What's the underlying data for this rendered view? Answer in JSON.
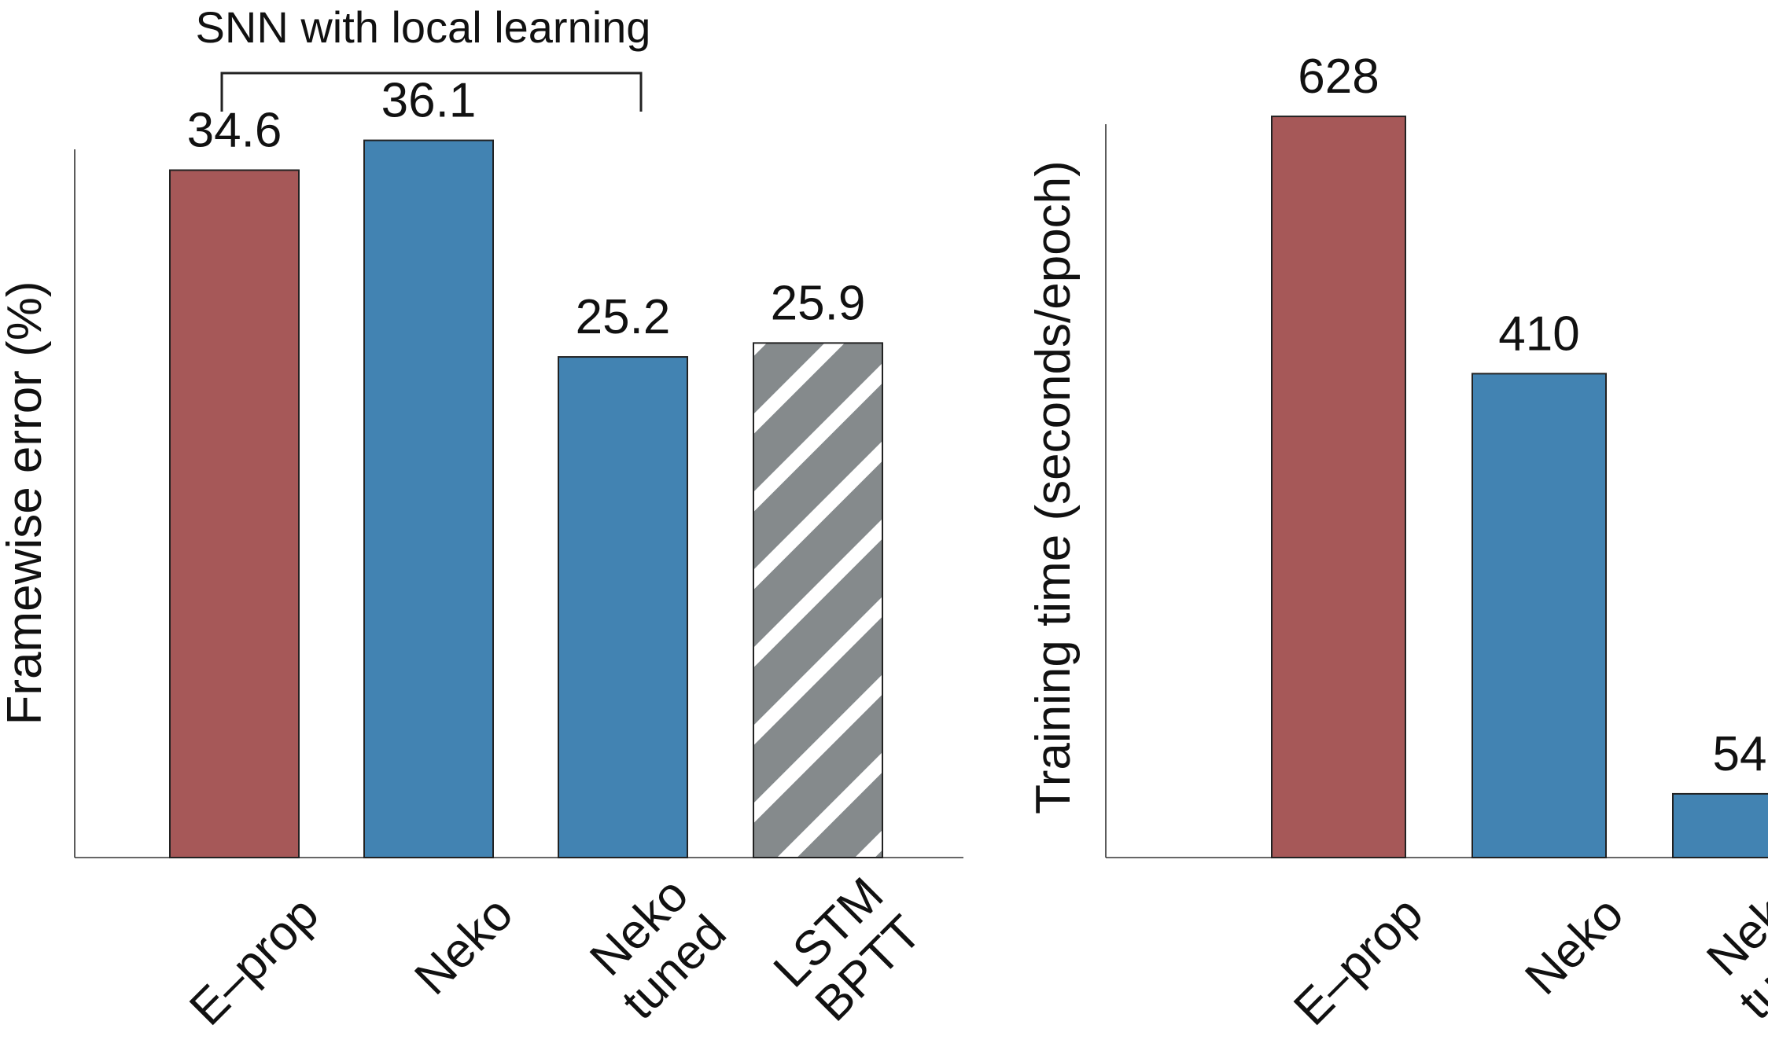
{
  "colors": {
    "eprop": "#a65858",
    "neko": "#4283b2",
    "lstm_fill": "#858a8c",
    "lstm_stripe": "#ffffff",
    "axis": "#333333"
  },
  "chart_data": [
    {
      "type": "bar",
      "ylabel": "Framewise error (%)",
      "categories": [
        [
          "E–prop"
        ],
        [
          "Neko"
        ],
        [
          "Neko",
          "tuned"
        ],
        [
          "LSTM",
          "BPTT"
        ]
      ],
      "values": [
        34.6,
        36.1,
        25.2,
        25.9
      ],
      "value_labels": [
        "34.6",
        "36.1",
        "25.2",
        "25.9"
      ],
      "bar_styles": [
        "eprop",
        "neko",
        "neko",
        "hatched"
      ],
      "ylim": [
        0,
        40
      ],
      "y_ticks_shown": false,
      "grid": false,
      "annotation": {
        "text": "SNN with local learning",
        "spans_categories": [
          0,
          2
        ]
      }
    },
    {
      "type": "bar",
      "ylabel": "Training time  (seconds/epoch)",
      "categories": [
        [
          "E–prop"
        ],
        [
          "Neko"
        ],
        [
          "Neko",
          "tuned"
        ]
      ],
      "values": [
        628,
        410,
        54
      ],
      "value_labels": [
        "628",
        "410",
        "54"
      ],
      "bar_styles": [
        "eprop",
        "neko",
        "neko"
      ],
      "ylim": [
        0,
        672
      ],
      "y_ticks_shown": false,
      "grid": false
    }
  ]
}
